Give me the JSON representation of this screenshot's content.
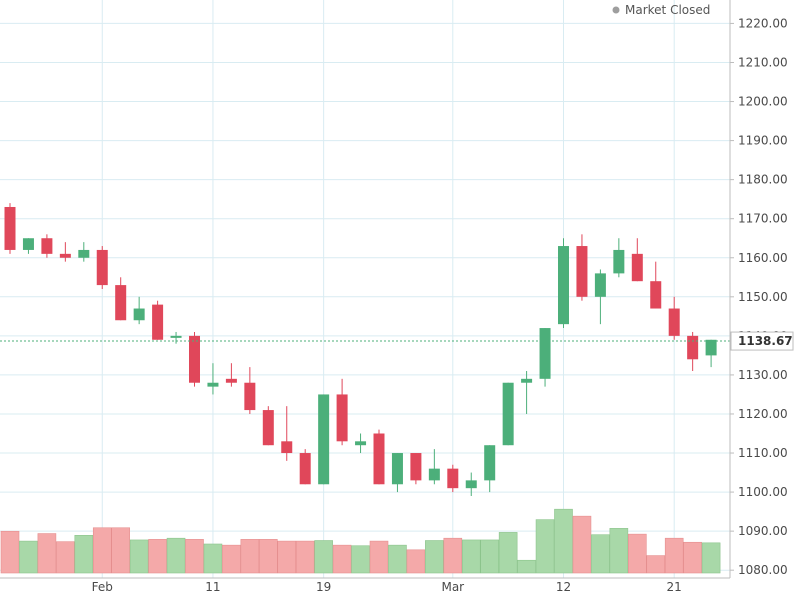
{
  "status": {
    "label": "Market Closed",
    "dot_color": "#9e9e9e"
  },
  "chart_data": {
    "type": "candlestick",
    "grid": true,
    "y_axis_position": "right",
    "ylim": [
      1078,
      1226
    ],
    "y_ticks": [
      1080,
      1090,
      1100,
      1110,
      1120,
      1130,
      1140,
      1150,
      1160,
      1170,
      1180,
      1190,
      1200,
      1210,
      1220
    ],
    "y_tick_labels": [
      "1080.00",
      "1090.00",
      "1100.00",
      "1110.00",
      "1120.00",
      "1130.00",
      "1140.00",
      "1150.00",
      "1160.00",
      "1170.00",
      "1180.00",
      "1190.00",
      "1200.00",
      "1210.00",
      "1220.00"
    ],
    "x_labels": [
      {
        "label": "Feb",
        "index": 5
      },
      {
        "label": "11",
        "index": 11
      },
      {
        "label": "19",
        "index": 17
      },
      {
        "label": "Mar",
        "index": 24
      },
      {
        "label": "12",
        "index": 30
      },
      {
        "label": "21",
        "index": 36
      }
    ],
    "last_price": {
      "value": 1138.67,
      "label": "1138.67"
    },
    "colors": {
      "up": "#4caf7a",
      "down": "#e0475a",
      "volume_up": "#a8d8a8",
      "volume_down": "#f4a9a9",
      "grid": "#d9ecf2",
      "price_line": "#4caf7a"
    },
    "candles": [
      {
        "o": 1173,
        "h": 1174,
        "l": 1161,
        "c": 1162,
        "v": 0.72
      },
      {
        "o": 1162,
        "h": 1165,
        "l": 1161,
        "c": 1165,
        "v": 0.55
      },
      {
        "o": 1165,
        "h": 1166,
        "l": 1160,
        "c": 1161,
        "v": 0.68
      },
      {
        "o": 1161,
        "h": 1164,
        "l": 1159,
        "c": 1160,
        "v": 0.54
      },
      {
        "o": 1160,
        "h": 1164,
        "l": 1159,
        "c": 1162,
        "v": 0.65
      },
      {
        "o": 1162,
        "h": 1163,
        "l": 1152,
        "c": 1153,
        "v": 0.78
      },
      {
        "o": 1153,
        "h": 1155,
        "l": 1144,
        "c": 1144,
        "v": 0.78
      },
      {
        "o": 1144,
        "h": 1150,
        "l": 1143,
        "c": 1147,
        "v": 0.57
      },
      {
        "o": 1148,
        "h": 1149,
        "l": 1139,
        "c": 1139,
        "v": 0.58
      },
      {
        "o": 1140,
        "h": 1141,
        "l": 1138,
        "c": 1140,
        "v": 0.6
      },
      {
        "o": 1140,
        "h": 1141,
        "l": 1127,
        "c": 1128,
        "v": 0.58
      },
      {
        "o": 1127,
        "h": 1133,
        "l": 1125,
        "c": 1128,
        "v": 0.5
      },
      {
        "o": 1129,
        "h": 1133,
        "l": 1127,
        "c": 1128,
        "v": 0.48
      },
      {
        "o": 1128,
        "h": 1132,
        "l": 1120,
        "c": 1121,
        "v": 0.58
      },
      {
        "o": 1121,
        "h": 1122,
        "l": 1112,
        "c": 1112,
        "v": 0.58
      },
      {
        "o": 1113,
        "h": 1122,
        "l": 1108,
        "c": 1110,
        "v": 0.55
      },
      {
        "o": 1110,
        "h": 1111,
        "l": 1102,
        "c": 1102,
        "v": 0.55
      },
      {
        "o": 1102,
        "h": 1125,
        "l": 1102,
        "c": 1125,
        "v": 0.56
      },
      {
        "o": 1125,
        "h": 1129,
        "l": 1112,
        "c": 1113,
        "v": 0.48
      },
      {
        "o": 1112,
        "h": 1115,
        "l": 1110,
        "c": 1113,
        "v": 0.47
      },
      {
        "o": 1115,
        "h": 1116,
        "l": 1102,
        "c": 1102,
        "v": 0.55
      },
      {
        "o": 1102,
        "h": 1110,
        "l": 1100,
        "c": 1110,
        "v": 0.48
      },
      {
        "o": 1110,
        "h": 1110,
        "l": 1102,
        "c": 1103,
        "v": 0.4
      },
      {
        "o": 1103,
        "h": 1111,
        "l": 1102,
        "c": 1106,
        "v": 0.56
      },
      {
        "o": 1106,
        "h": 1107,
        "l": 1100,
        "c": 1101,
        "v": 0.6
      },
      {
        "o": 1101,
        "h": 1105,
        "l": 1099,
        "c": 1103,
        "v": 0.57
      },
      {
        "o": 1103,
        "h": 1112,
        "l": 1100,
        "c": 1112,
        "v": 0.57
      },
      {
        "o": 1112,
        "h": 1128,
        "l": 1112,
        "c": 1128,
        "v": 0.7
      },
      {
        "o": 1128,
        "h": 1131,
        "l": 1120,
        "c": 1129,
        "v": 0.22
      },
      {
        "o": 1129,
        "h": 1142,
        "l": 1127,
        "c": 1142,
        "v": 0.92
      },
      {
        "o": 1143,
        "h": 1165,
        "l": 1142,
        "c": 1163,
        "v": 1.1
      },
      {
        "o": 1163,
        "h": 1166,
        "l": 1149,
        "c": 1150,
        "v": 0.98
      },
      {
        "o": 1150,
        "h": 1157,
        "l": 1143,
        "c": 1156,
        "v": 0.66
      },
      {
        "o": 1156,
        "h": 1165,
        "l": 1155,
        "c": 1162,
        "v": 0.77
      },
      {
        "o": 1161,
        "h": 1165,
        "l": 1154,
        "c": 1154,
        "v": 0.67
      },
      {
        "o": 1154,
        "h": 1159,
        "l": 1147,
        "c": 1147,
        "v": 0.3
      },
      {
        "o": 1147,
        "h": 1150,
        "l": 1139,
        "c": 1140,
        "v": 0.6
      },
      {
        "o": 1140,
        "h": 1141,
        "l": 1131,
        "c": 1134,
        "v": 0.53
      },
      {
        "o": 1135,
        "h": 1139,
        "l": 1132,
        "c": 1139,
        "v": 0.52
      }
    ]
  }
}
